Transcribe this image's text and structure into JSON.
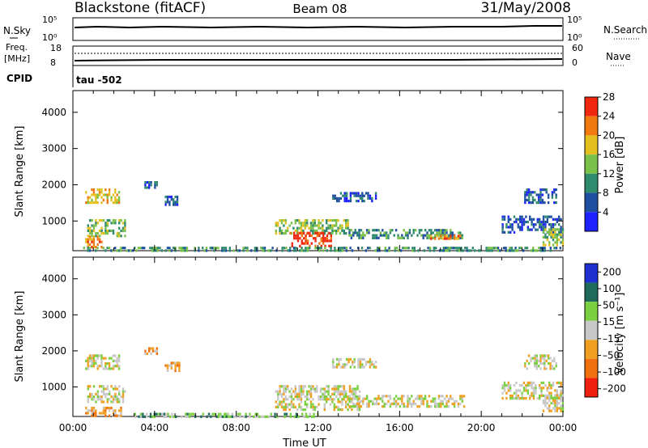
{
  "header": {
    "station": "Blackstone (fitACF)",
    "beam": "Beam 08",
    "date": "31/May/2008"
  },
  "chart_data": [
    {
      "type": "line",
      "panel": "noise",
      "left_label": "N.Sky",
      "left_ticks": [
        "10^5",
        "10^0"
      ],
      "right_label": "N.Search",
      "right_ticks": [
        "10^5",
        "10^0"
      ]
    },
    {
      "type": "line",
      "panel": "frequency",
      "left_label_lines": [
        "Freq.",
        "[MHz]"
      ],
      "left_ticks": [
        "18",
        "8"
      ],
      "right_label": "Nave",
      "right_ticks": [
        "60",
        "0"
      ],
      "cpid_label": "CPID",
      "cpid_value": "tau -502"
    },
    {
      "type": "heatmap",
      "panel": "power",
      "ylabel": "Slant Range [km]",
      "yticks": [
        1000,
        2000,
        3000,
        4000
      ],
      "ylim": [
        180,
        4600
      ],
      "xlim": [
        0,
        24
      ],
      "colorbar_label": "Power [dB]",
      "colorbar_ticks": [
        4,
        8,
        12,
        16,
        20,
        24,
        28
      ],
      "colors": [
        "#1f22ff",
        "#1f4fa0",
        "#2f8a6e",
        "#7ac14a",
        "#e3c020",
        "#f07a10",
        "#f02810"
      ],
      "echo_regions": [
        {
          "t0": 0.6,
          "t1": 2.3,
          "r0": 1500,
          "r1": 1900,
          "level": 4
        },
        {
          "t0": 0.7,
          "t1": 2.6,
          "r0": 600,
          "r1": 1050,
          "level": 3
        },
        {
          "t0": 0.6,
          "t1": 1.4,
          "r0": 300,
          "r1": 600,
          "level": 5
        },
        {
          "t0": 3.5,
          "t1": 4.1,
          "r0": 1900,
          "r1": 2100,
          "level": 1
        },
        {
          "t0": 4.5,
          "t1": 5.2,
          "r0": 1450,
          "r1": 1700,
          "level": 1
        },
        {
          "t0": 9.9,
          "t1": 13.5,
          "r0": 650,
          "r1": 1050,
          "level": 3
        },
        {
          "t0": 10.6,
          "t1": 12.6,
          "r0": 330,
          "r1": 700,
          "level": 6
        },
        {
          "t0": 12.7,
          "t1": 14.8,
          "r0": 1550,
          "r1": 1800,
          "level": 1
        },
        {
          "t0": 13.5,
          "t1": 19.2,
          "r0": 550,
          "r1": 780,
          "level": 2
        },
        {
          "t0": 17.5,
          "t1": 19.0,
          "r0": 480,
          "r1": 620,
          "level": 5
        },
        {
          "t0": 21.0,
          "t1": 23.9,
          "r0": 650,
          "r1": 1150,
          "level": 1
        },
        {
          "t0": 22.1,
          "t1": 23.7,
          "r0": 1500,
          "r1": 1900,
          "level": 1
        },
        {
          "t0": 23.0,
          "t1": 24.0,
          "r0": 350,
          "r1": 800,
          "level": 3
        },
        {
          "t0": 0.5,
          "t1": 23.9,
          "r0": 180,
          "r1": 290,
          "level": 2
        }
      ]
    },
    {
      "type": "heatmap",
      "panel": "velocity",
      "ylabel": "Slant Range [km]",
      "xlabel": "Time UT",
      "xticks": [
        "00:00",
        "04:00",
        "08:00",
        "12:00",
        "16:00",
        "20:00",
        "00:00"
      ],
      "yticks": [
        1000,
        2000,
        3000,
        4000
      ],
      "ylim": [
        180,
        4600
      ],
      "xlim": [
        0,
        24
      ],
      "colorbar_label": "Velocity [m s^-1]",
      "colorbar_ticks": [
        200,
        100,
        50,
        15,
        -15,
        -50,
        -100,
        -200
      ],
      "colors": [
        "#1f2fd0",
        "#1f6a5a",
        "#7ad040",
        "#c8c8c8",
        "#f0a020",
        "#f07010",
        "#f02010"
      ],
      "echo_regions": [
        {
          "t0": 0.6,
          "t1": 2.3,
          "r0": 1500,
          "r1": 1900,
          "level": 3
        },
        {
          "t0": 0.7,
          "t1": 2.6,
          "r0": 600,
          "r1": 1050,
          "level": 3
        },
        {
          "t0": 0.6,
          "t1": 2.4,
          "r0": 180,
          "r1": 450,
          "level": 4
        },
        {
          "t0": 3.5,
          "t1": 4.1,
          "r0": 1900,
          "r1": 2100,
          "level": 4
        },
        {
          "t0": 4.5,
          "t1": 5.2,
          "r0": 1450,
          "r1": 1700,
          "level": 4
        },
        {
          "t0": 9.9,
          "t1": 14.0,
          "r0": 380,
          "r1": 1050,
          "level": 3
        },
        {
          "t0": 12.7,
          "t1": 14.8,
          "r0": 1550,
          "r1": 1800,
          "level": 3
        },
        {
          "t0": 13.5,
          "t1": 19.2,
          "r0": 480,
          "r1": 780,
          "level": 3
        },
        {
          "t0": 21.0,
          "t1": 23.9,
          "r0": 650,
          "r1": 1150,
          "level": 3
        },
        {
          "t0": 22.1,
          "t1": 23.7,
          "r0": 1500,
          "r1": 1900,
          "level": 3
        },
        {
          "t0": 23.0,
          "t1": 24.0,
          "r0": 350,
          "r1": 800,
          "level": 3
        },
        {
          "t0": 3.0,
          "t1": 12.0,
          "r0": 180,
          "r1": 280,
          "level": 2
        }
      ]
    }
  ]
}
